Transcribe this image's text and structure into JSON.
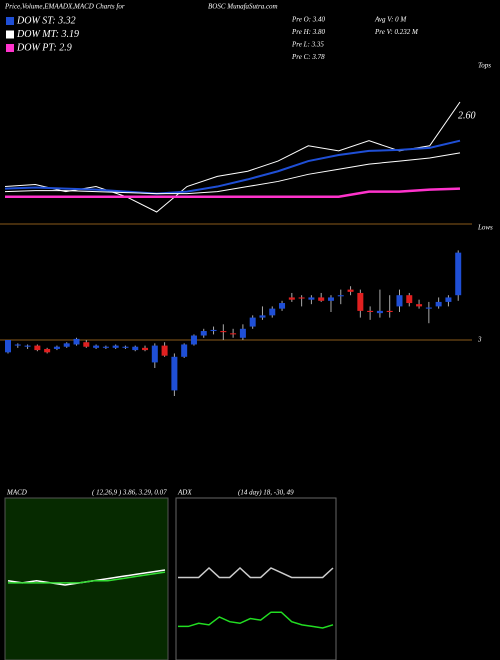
{
  "chart_data": {
    "type": "candlestick",
    "title": "Price,Volume,EMAADX,MACD Charts for",
    "site": "BOSC MunafaSutra.com",
    "info": [
      "Pre O: 3.40",
      "Pre H: 3.80",
      "Pre L: 3.35",
      "Pre C: 3.78",
      "Avg V: 0  M",
      "Pre V: 0.232  M"
    ],
    "tops_label": "Tops",
    "lows_label": "Lows",
    "price_label": "2.60",
    "up_color": "#1f4fd6",
    "down_color": "#e02020",
    "level": 3,
    "level_color": "#8a5a1a",
    "candles": {
      "open": [
        2.89,
        2.95,
        2.94,
        2.95,
        2.92,
        2.92,
        2.94,
        2.96,
        2.98,
        2.93,
        2.93,
        2.93,
        2.93,
        2.91,
        2.93,
        2.8,
        2.95,
        2.55,
        2.85,
        2.96,
        3.04,
        3.08,
        3.08,
        3.06,
        3.02,
        3.12,
        3.2,
        3.22,
        3.28,
        3.38,
        3.38,
        3.36,
        3.38,
        3.35,
        3.39,
        3.45,
        3.42,
        3.26,
        3.24,
        3.26,
        3.3,
        3.4,
        3.32,
        3.28,
        3.3,
        3.34,
        3.4
      ],
      "high": [
        3.0,
        2.97,
        2.96,
        2.96,
        2.93,
        2.95,
        2.98,
        3.02,
        3.0,
        2.96,
        2.95,
        2.96,
        2.95,
        2.95,
        2.95,
        2.97,
        2.98,
        2.88,
        2.97,
        3.05,
        3.1,
        3.12,
        3.14,
        3.1,
        3.14,
        3.22,
        3.3,
        3.3,
        3.35,
        3.42,
        3.4,
        3.4,
        3.42,
        3.4,
        3.45,
        3.48,
        3.45,
        3.3,
        3.45,
        3.4,
        3.45,
        3.42,
        3.36,
        3.34,
        3.38,
        3.4,
        3.8
      ],
      "low": [
        2.88,
        2.93,
        2.92,
        2.9,
        2.88,
        2.91,
        2.93,
        2.95,
        2.93,
        2.92,
        2.92,
        2.92,
        2.92,
        2.9,
        2.9,
        2.75,
        2.85,
        2.5,
        2.84,
        2.95,
        3.02,
        3.05,
        3.0,
        3.02,
        3.0,
        3.1,
        3.18,
        3.2,
        3.26,
        3.34,
        3.3,
        3.32,
        3.34,
        3.25,
        3.32,
        3.4,
        3.2,
        3.18,
        3.2,
        3.2,
        3.25,
        3.3,
        3.28,
        3.15,
        3.28,
        3.3,
        3.35
      ],
      "close": [
        3.0,
        2.96,
        2.95,
        2.91,
        2.89,
        2.94,
        2.97,
        3.01,
        2.94,
        2.95,
        2.94,
        2.95,
        2.94,
        2.94,
        2.91,
        2.95,
        2.86,
        2.85,
        2.96,
        3.04,
        3.08,
        3.09,
        3.07,
        3.05,
        3.1,
        3.2,
        3.22,
        3.28,
        3.33,
        3.36,
        3.37,
        3.38,
        3.35,
        3.38,
        3.4,
        3.43,
        3.26,
        3.25,
        3.26,
        3.25,
        3.4,
        3.33,
        3.3,
        3.29,
        3.34,
        3.38,
        3.78
      ]
    },
    "series": [
      {
        "name": "Price",
        "color": "#ffffff",
        "values": [
          2.95,
          2.97,
          2.9,
          2.95,
          2.85,
          2.7,
          2.95,
          3.05,
          3.1,
          3.2,
          3.35,
          3.3,
          3.4,
          3.3,
          3.35,
          3.78
        ]
      },
      {
        "name": "DOW ST: 3.32",
        "color": "#1f4fd6",
        "values": [
          2.93,
          2.94,
          2.93,
          2.92,
          2.9,
          2.88,
          2.9,
          2.95,
          3.02,
          3.1,
          3.2,
          3.26,
          3.3,
          3.31,
          3.33,
          3.4
        ]
      },
      {
        "name": "DOW MT: 3.19",
        "color": "#ffffff",
        "values": [
          2.9,
          2.91,
          2.91,
          2.9,
          2.89,
          2.88,
          2.88,
          2.9,
          2.95,
          3.0,
          3.07,
          3.12,
          3.17,
          3.2,
          3.23,
          3.28
        ]
      },
      {
        "name": "DOW PT: 2.9",
        "color": "#ff33cc",
        "values": [
          2.85,
          2.85,
          2.85,
          2.85,
          2.85,
          2.85,
          2.85,
          2.85,
          2.85,
          2.85,
          2.85,
          2.85,
          2.9,
          2.9,
          2.92,
          2.93
        ]
      }
    ],
    "macd": {
      "label": "MACD",
      "params": "( 12,26,9 ) 3.86, 3.29, 0.07",
      "series": [
        {
          "color": "#ffffff",
          "values": [
            0.01,
            0.0,
            0.01,
            0.0,
            -0.01,
            0.0,
            0.01,
            0.02,
            0.03,
            0.04,
            0.05,
            0.06
          ]
        },
        {
          "color": "#33dd33",
          "values": [
            0.0,
            0.0,
            0.0,
            0.0,
            0.0,
            0.0,
            0.01,
            0.01,
            0.02,
            0.03,
            0.04,
            0.05
          ]
        }
      ]
    },
    "adx": {
      "label": "ADX",
      "params": "(14 day) 18, -30, 49",
      "series": [
        {
          "color": "#cccccc",
          "values": [
            49,
            49,
            49,
            55,
            49,
            49,
            55,
            49,
            49,
            55,
            52,
            49,
            49,
            49,
            49,
            55
          ]
        },
        {
          "color": "#22dd22",
          "values": [
            18,
            18,
            20,
            19,
            24,
            21,
            20,
            23,
            22,
            27,
            27,
            21,
            19,
            18,
            17,
            19
          ]
        }
      ]
    }
  }
}
